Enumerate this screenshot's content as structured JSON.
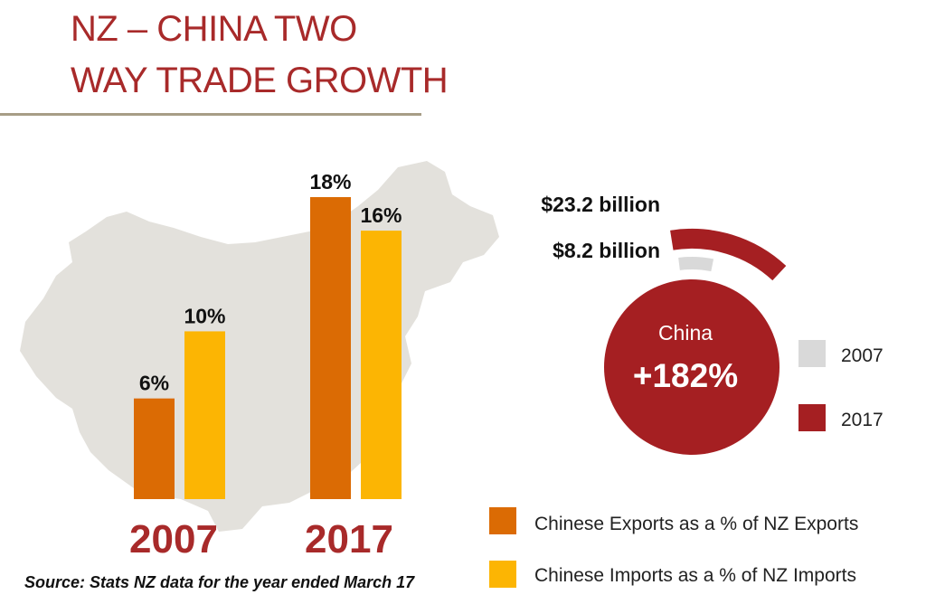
{
  "title": {
    "line1": "NZ – CHINA TWO",
    "line2": "WAY TRADE GROWTH"
  },
  "colors": {
    "title": "#a82a2a",
    "exports": "#db6b04",
    "imports": "#fcb503",
    "ring_2007": "#d9d9d9",
    "ring_2017": "#a51f22",
    "map": "#e3e1dc"
  },
  "chart_data": [
    {
      "type": "bar",
      "categories": [
        "2007",
        "2017"
      ],
      "series": [
        {
          "name": "Chinese Exports as a % of NZ Exports",
          "values": [
            6,
            18
          ]
        },
        {
          "name": "Chinese Imports as a % of NZ Imports",
          "values": [
            10,
            16
          ]
        }
      ],
      "data_labels": [
        [
          "6%",
          "18%"
        ],
        [
          "10%",
          "16%"
        ]
      ],
      "ylim": [
        0,
        18
      ],
      "legend": "bottom-right"
    },
    {
      "type": "pie",
      "center_label": "China",
      "center_value": "+182%",
      "rings": [
        {
          "name": "2007",
          "value": 8.2,
          "label": "$8.2 billion"
        },
        {
          "name": "2017",
          "value": 23.2,
          "label": "$23.2 billion"
        }
      ],
      "legend_entries": [
        "2007",
        "2017"
      ],
      "legend": "right"
    }
  ],
  "source": "Source: Stats NZ data for the year ended March 17"
}
